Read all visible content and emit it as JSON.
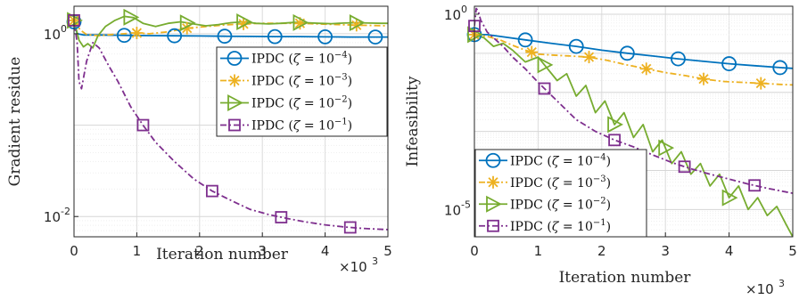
{
  "chart_data": [
    {
      "type": "line",
      "xlabel": "Iteration number",
      "ylabel": "Gradient residue",
      "x_scale_label": {
        "base": "×10",
        "exp": "3"
      },
      "y_scale": "log",
      "xlim": [
        0,
        5000
      ],
      "ylim": [
        0.006,
        2.0
      ],
      "x_ticks": [
        0,
        1000,
        2000,
        3000,
        4000,
        5000
      ],
      "x_tick_labels": [
        "0",
        "1",
        "2",
        "3",
        "4",
        "5"
      ],
      "y_ticks": [
        {
          "value": 0.01,
          "base": "10",
          "exp": "-2"
        },
        {
          "value": 1,
          "base": "10",
          "exp": "0"
        }
      ],
      "grid": true,
      "legend_position": "top-right",
      "series": [
        {
          "name": "IPDC (ζ = 10⁻⁴)",
          "legend": {
            "prefix": "IPDC (",
            "sym": "ζ",
            "eq": " = 10",
            "exp": "−4",
            "suffix": ")"
          },
          "color": "#0072BD",
          "marker": "circle",
          "dash": "solid",
          "x": [
            0,
            50,
            150,
            400,
            800,
            1200,
            1600,
            2000,
            2400,
            2800,
            3200,
            3600,
            4000,
            4400,
            4800,
            5000
          ],
          "y": [
            1.35,
            1.0,
            0.97,
            0.97,
            0.96,
            0.955,
            0.95,
            0.945,
            0.94,
            0.935,
            0.93,
            0.93,
            0.925,
            0.92,
            0.92,
            0.92
          ],
          "markers_x": [
            0,
            800,
            1600,
            2400,
            3200,
            4000,
            4800
          ]
        },
        {
          "name": "IPDC (ζ = 10⁻³)",
          "legend": {
            "prefix": "IPDC (",
            "sym": "ζ",
            "eq": " = 10",
            "exp": "−3",
            "suffix": ")"
          },
          "color": "#EDB120",
          "marker": "asterisk",
          "dash": "dashdot",
          "x": [
            0,
            100,
            200,
            400,
            600,
            800,
            1000,
            1200,
            1500,
            1800,
            2100,
            2400,
            2700,
            3000,
            3300,
            3600,
            3900,
            4200,
            4500,
            4800,
            5000
          ],
          "y": [
            1.4,
            1.1,
            0.98,
            0.95,
            0.98,
            1.0,
            1.02,
            1.0,
            1.05,
            1.15,
            1.2,
            1.25,
            1.28,
            1.3,
            1.3,
            1.3,
            1.28,
            1.26,
            1.24,
            1.23,
            1.22
          ],
          "markers_x": [
            0,
            1000,
            1800,
            2700,
            3600,
            4500
          ]
        },
        {
          "name": "IPDC (ζ = 10⁻²)",
          "legend": {
            "prefix": "IPDC (",
            "sym": "ζ",
            "eq": " = 10",
            "exp": "−2",
            "suffix": ")"
          },
          "color": "#77AC30",
          "marker": "triangle-right",
          "dash": "solid",
          "x": [
            0,
            80,
            150,
            220,
            300,
            380,
            500,
            650,
            800,
            950,
            1100,
            1300,
            1500,
            1700,
            1900,
            2100,
            2300,
            2500,
            2700,
            2900,
            3100,
            3300,
            3500,
            3700,
            3900,
            4100,
            4300,
            4500,
            4700,
            4900,
            5000
          ],
          "y": [
            1.4,
            0.85,
            0.72,
            0.78,
            0.7,
            0.95,
            1.2,
            1.4,
            1.55,
            1.5,
            1.3,
            1.2,
            1.3,
            1.35,
            1.28,
            1.22,
            1.26,
            1.32,
            1.35,
            1.3,
            1.28,
            1.3,
            1.33,
            1.32,
            1.3,
            1.29,
            1.31,
            1.32,
            1.31,
            1.3,
            1.3
          ],
          "markers_x": [
            0,
            900,
            1800,
            2700,
            3600,
            4500
          ]
        },
        {
          "name": "IPDC (ζ = 10⁻¹)",
          "legend": {
            "prefix": "IPDC (",
            "sym": "ζ",
            "eq": " = 10",
            "exp": "−1",
            "suffix": ")"
          },
          "color": "#7E2F8E",
          "marker": "square",
          "dash": "dashdot",
          "x": [
            0,
            50,
            80,
            120,
            200,
            300,
            400,
            550,
            700,
            900,
            1100,
            1300,
            1600,
            1900,
            2200,
            2500,
            2800,
            3100,
            3400,
            3700,
            4000,
            4300,
            4600,
            5000
          ],
          "y": [
            1.4,
            0.8,
            0.3,
            0.25,
            0.5,
            0.8,
            0.7,
            0.45,
            0.3,
            0.16,
            0.1,
            0.065,
            0.04,
            0.026,
            0.019,
            0.015,
            0.012,
            0.0105,
            0.0095,
            0.0087,
            0.0081,
            0.0077,
            0.0074,
            0.0072
          ],
          "markers_x": [
            0,
            1100,
            2200,
            3300,
            4400
          ]
        }
      ]
    },
    {
      "type": "line",
      "xlabel": "Iteration number",
      "ylabel": "Infeasibility",
      "x_scale_label": {
        "base": "×10",
        "exp": "3"
      },
      "y_scale": "log",
      "xlim": [
        0,
        5000
      ],
      "ylim": [
        2e-06,
        1.6
      ],
      "x_ticks": [
        0,
        1000,
        2000,
        3000,
        4000,
        5000
      ],
      "x_tick_labels": [
        "0",
        "1",
        "2",
        "3",
        "4",
        "5"
      ],
      "y_ticks": [
        {
          "value": 1e-05,
          "base": "10",
          "exp": "-5"
        },
        {
          "value": 1,
          "base": "10",
          "exp": "0"
        }
      ],
      "grid": true,
      "legend_position": "bottom-left",
      "series": [
        {
          "name": "IPDC (ζ = 10⁻⁴)",
          "legend": {
            "prefix": "IPDC (",
            "sym": "ζ",
            "eq": " = 10",
            "exp": "−4",
            "suffix": ")"
          },
          "color": "#0072BD",
          "marker": "circle",
          "dash": "solid",
          "x": [
            0,
            200,
            400,
            800,
            1200,
            1600,
            2000,
            2400,
            2800,
            3200,
            3600,
            4000,
            4400,
            4800,
            5000
          ],
          "y": [
            0.3,
            0.3,
            0.27,
            0.22,
            0.18,
            0.15,
            0.12,
            0.1,
            0.085,
            0.072,
            0.062,
            0.054,
            0.048,
            0.043,
            0.041
          ],
          "markers_x": [
            0,
            800,
            1600,
            2400,
            3200,
            4000,
            4800
          ]
        },
        {
          "name": "IPDC (ζ = 10⁻³)",
          "legend": {
            "prefix": "IPDC (",
            "sym": "ζ",
            "eq": " = 10",
            "exp": "−3",
            "suffix": ")"
          },
          "color": "#EDB120",
          "marker": "asterisk",
          "dash": "dashdot",
          "x": [
            0,
            200,
            400,
            600,
            800,
            1000,
            1200,
            1500,
            1800,
            2100,
            2400,
            2700,
            3000,
            3300,
            3600,
            3900,
            4200,
            4500,
            4800,
            5000
          ],
          "y": [
            0.3,
            0.27,
            0.22,
            0.16,
            0.12,
            0.095,
            0.09,
            0.085,
            0.08,
            0.065,
            0.05,
            0.04,
            0.032,
            0.027,
            0.022,
            0.019,
            0.018,
            0.017,
            0.016,
            0.0155
          ],
          "markers_x": [
            0,
            900,
            1800,
            2700,
            3600,
            4500
          ]
        },
        {
          "name": "IPDC (ζ = 10⁻²)",
          "legend": {
            "prefix": "IPDC (",
            "sym": "ζ",
            "eq": " = 10",
            "exp": "−2",
            "suffix": ")"
          },
          "color": "#77AC30",
          "marker": "triangle-right",
          "dash": "solid",
          "x": [
            0,
            150,
            300,
            450,
            600,
            800,
            1000,
            1150,
            1300,
            1450,
            1600,
            1750,
            1900,
            2050,
            2200,
            2350,
            2500,
            2650,
            2800,
            2950,
            3100,
            3250,
            3400,
            3550,
            3700,
            3850,
            4000,
            4150,
            4300,
            4450,
            4600,
            4750,
            4900,
            5000
          ],
          "y": [
            0.3,
            0.25,
            0.15,
            0.18,
            0.12,
            0.06,
            0.08,
            0.04,
            0.02,
            0.03,
            0.008,
            0.015,
            0.003,
            0.006,
            0.0015,
            0.003,
            0.0007,
            0.0015,
            0.0003,
            0.0006,
            0.00015,
            0.0003,
            8e-05,
            0.00015,
            4e-05,
            8e-05,
            2e-05,
            4e-05,
            1e-05,
            2e-05,
            7e-06,
            1.2e-05,
            4e-06,
            2e-06
          ],
          "markers_x": [
            0,
            1100,
            2200,
            3000,
            4000
          ]
        },
        {
          "name": "IPDC (ζ = 10⁻¹)",
          "legend": {
            "prefix": "IPDC (",
            "sym": "ζ",
            "eq": " = 10",
            "exp": "−1",
            "suffix": ")"
          },
          "color": "#7E2F8E",
          "marker": "square",
          "dash": "dashdot",
          "x": [
            0,
            30,
            60,
            100,
            150,
            200,
            300,
            450,
            600,
            800,
            1000,
            1300,
            1600,
            1900,
            2200,
            2500,
            2800,
            3100,
            3400,
            3700,
            4000,
            4300,
            4600,
            5000
          ],
          "y": [
            0.5,
            1.4,
            1.2,
            0.7,
            0.5,
            0.35,
            0.25,
            0.15,
            0.08,
            0.04,
            0.018,
            0.006,
            0.002,
            0.001,
            0.0006,
            0.0004,
            0.00025,
            0.00016,
            0.00011,
            8e-05,
            6e-05,
            4.5e-05,
            3.5e-05,
            2.6e-05
          ],
          "markers_x": [
            0,
            1100,
            2200,
            3300,
            4400
          ]
        }
      ]
    }
  ]
}
